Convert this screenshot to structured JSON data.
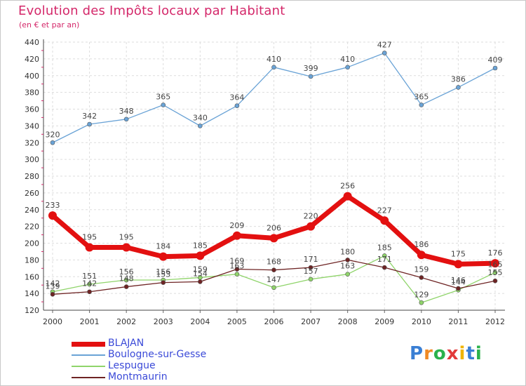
{
  "header": {
    "title": "Evolution des Impôts locaux par Habitant",
    "subtitle": "(en € et par an)"
  },
  "logo": {
    "text": "Proxiti",
    "letters": [
      "P",
      "r",
      "o",
      "x",
      "i",
      "t",
      "i"
    ],
    "colors": [
      "#3a7fd4",
      "#f08a24",
      "#2bb24c",
      "#e23a3a",
      "#f0b400",
      "#3a7fd4",
      "#2bb24c"
    ]
  },
  "chart_data": {
    "type": "line",
    "title": "Evolution des Impôts locaux par Habitant",
    "subtitle": "(en € et par an)",
    "xlabel": "",
    "ylabel": "",
    "ylim": [
      120,
      440
    ],
    "ytick_step": 20,
    "grid": true,
    "legend_position": "bottom-left",
    "x": [
      "2000",
      "2001",
      "2002",
      "2003",
      "2004",
      "2005",
      "2006",
      "2007",
      "2008",
      "2009",
      "2010",
      "2011",
      "2012"
    ],
    "series": [
      {
        "name": "BLAJAN",
        "color": "#e31010",
        "width": "thick",
        "values": [
          233,
          195,
          195,
          184,
          185,
          209,
          206,
          220,
          256,
          227,
          186,
          175,
          176
        ]
      },
      {
        "name": "Boulogne-sur-Gesse",
        "color": "#6aa3d6",
        "width": "thin",
        "values": [
          320,
          342,
          348,
          365,
          340,
          364,
          410,
          399,
          410,
          427,
          365,
          386,
          409
        ]
      },
      {
        "name": "Lespugue",
        "color": "#8fd46a",
        "width": "thin",
        "values": [
          142,
          151,
          156,
          156,
          159,
          163,
          147,
          157,
          163,
          185,
          129,
          144,
          165
        ]
      },
      {
        "name": "Montmaurin",
        "color": "#6e2424",
        "width": "thin",
        "values": [
          139,
          142,
          148,
          153,
          154,
          169,
          168,
          171,
          180,
          171,
          159,
          146,
          155
        ]
      }
    ]
  }
}
